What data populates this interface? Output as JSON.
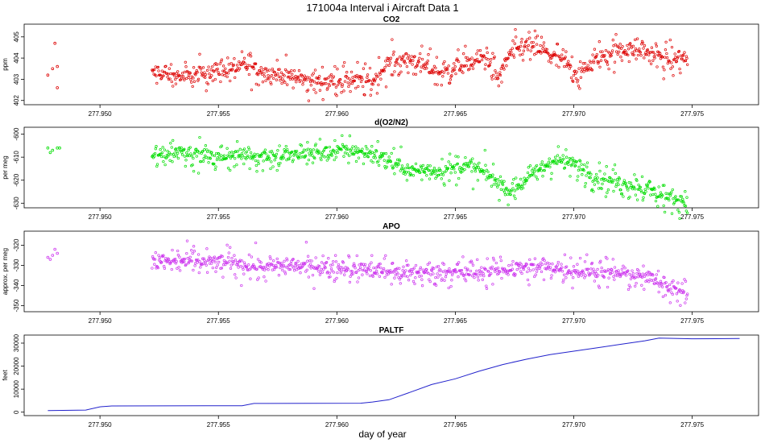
{
  "figure": {
    "title": "171004a   Interval i Aircraft Data 1",
    "xlabel": "day of year"
  },
  "chart_data": [
    {
      "type": "scatter",
      "title": "CO2",
      "ylabel": "ppm",
      "color": "#dd0000",
      "xlim": [
        277.9468,
        277.9778
      ],
      "ylim": [
        401.8,
        405.6
      ],
      "xticks": [
        277.95,
        277.955,
        277.96,
        277.965,
        277.97,
        277.975
      ],
      "xtick_labels": [
        "277.950",
        "277.955",
        "277.960",
        "277.965",
        "277.970",
        "277.975"
      ],
      "yticks": [
        402,
        403,
        404,
        405
      ],
      "ytick_labels": [
        "402",
        "403",
        "404",
        "405"
      ],
      "segments": [
        {
          "x_start": 277.9478,
          "x_end": 277.9483,
          "points": [
            [
              277.9478,
              403.2
            ],
            [
              277.948,
              403.5
            ],
            [
              277.9482,
              403.6
            ],
            [
              277.9481,
              404.7
            ],
            [
              277.9482,
              402.6
            ]
          ]
        },
        {
          "x_start": 277.9522,
          "x_end": 277.9748,
          "anchors": [
            [
              277.9522,
              403.3
            ],
            [
              277.9535,
              403.1
            ],
            [
              277.955,
              403.4
            ],
            [
              277.9562,
              403.6
            ],
            [
              277.9575,
              403.2
            ],
            [
              277.959,
              402.9
            ],
            [
              277.9605,
              403.0
            ],
            [
              277.9615,
              402.9
            ],
            [
              277.9622,
              403.8
            ],
            [
              277.9632,
              403.9
            ],
            [
              277.9643,
              403.3
            ],
            [
              277.9655,
              403.7
            ],
            [
              277.9663,
              404.1
            ],
            [
              277.9668,
              403.0
            ],
            [
              277.9673,
              404.2
            ],
            [
              277.968,
              404.6
            ],
            [
              277.9688,
              404.3
            ],
            [
              277.9695,
              403.9
            ],
            [
              277.9702,
              403.2
            ],
            [
              277.971,
              404.0
            ],
            [
              277.972,
              404.4
            ],
            [
              277.973,
              404.3
            ],
            [
              277.974,
              403.9
            ],
            [
              277.9748,
              404.0
            ]
          ],
          "spread": 0.55
        }
      ]
    },
    {
      "type": "scatter",
      "title": "d(O2/N2)",
      "ylabel": "per meg",
      "color": "#00dd00",
      "xlim": [
        277.9468,
        277.9778
      ],
      "ylim": [
        -632,
        -597
      ],
      "xticks": [
        277.95,
        277.955,
        277.96,
        277.965,
        277.97,
        277.975
      ],
      "xtick_labels": [
        "277.950",
        "277.955",
        "277.960",
        "277.965",
        "277.970",
        "277.975"
      ],
      "yticks": [
        -630,
        -620,
        -610,
        -600
      ],
      "ytick_labels": [
        "-630",
        "-620",
        "-610",
        "-600"
      ],
      "segments": [
        {
          "x_start": 277.9478,
          "x_end": 277.9483,
          "points": [
            [
              277.9478,
              -606
            ],
            [
              277.948,
              -607
            ],
            [
              277.9482,
              -606
            ],
            [
              277.9483,
              -606
            ],
            [
              277.9479,
              -608
            ]
          ]
        },
        {
          "x_start": 277.9522,
          "x_end": 277.9748,
          "anchors": [
            [
              277.9522,
              -610
            ],
            [
              277.9535,
              -607
            ],
            [
              277.9548,
              -610
            ],
            [
              277.956,
              -609
            ],
            [
              277.9575,
              -610
            ],
            [
              277.959,
              -608
            ],
            [
              277.9605,
              -607
            ],
            [
              277.9618,
              -609
            ],
            [
              277.963,
              -616
            ],
            [
              277.9642,
              -616
            ],
            [
              277.9655,
              -614
            ],
            [
              277.9663,
              -617
            ],
            [
              277.9673,
              -625
            ],
            [
              277.9682,
              -618
            ],
            [
              277.9692,
              -611
            ],
            [
              277.97,
              -613
            ],
            [
              277.971,
              -619
            ],
            [
              277.972,
              -621
            ],
            [
              277.9732,
              -624
            ],
            [
              277.974,
              -628
            ],
            [
              277.9748,
              -629
            ]
          ],
          "spread": 4.5
        }
      ]
    },
    {
      "type": "scatter",
      "title": "APO",
      "ylabel": "approx. per meg",
      "color": "#cc33ee",
      "xlim": [
        277.9468,
        277.9778
      ],
      "ylim": [
        -353,
        -313
      ],
      "xticks": [
        277.95,
        277.955,
        277.96,
        277.965,
        277.97,
        277.975
      ],
      "xtick_labels": [
        "277.950",
        "277.955",
        "277.960",
        "277.965",
        "277.970",
        "277.975"
      ],
      "yticks": [
        -350,
        -340,
        -330,
        -320
      ],
      "ytick_labels": [
        "-350",
        "-340",
        "-330",
        "-320"
      ],
      "segments": [
        {
          "x_start": 277.9478,
          "x_end": 277.9483,
          "points": [
            [
              277.9478,
              -326
            ],
            [
              277.948,
              -325
            ],
            [
              277.9482,
              -324
            ],
            [
              277.9481,
              -322
            ],
            [
              277.9479,
              -327
            ]
          ]
        },
        {
          "x_start": 277.9522,
          "x_end": 277.9748,
          "anchors": [
            [
              277.9522,
              -328
            ],
            [
              277.9538,
              -328
            ],
            [
              277.9555,
              -329
            ],
            [
              277.957,
              -331
            ],
            [
              277.9585,
              -330
            ],
            [
              277.96,
              -331
            ],
            [
              277.9615,
              -332
            ],
            [
              277.963,
              -334
            ],
            [
              277.9645,
              -333
            ],
            [
              277.966,
              -334
            ],
            [
              277.9675,
              -331
            ],
            [
              277.969,
              -331
            ],
            [
              277.9705,
              -333
            ],
            [
              277.972,
              -334
            ],
            [
              277.9735,
              -337
            ],
            [
              277.9742,
              -342
            ],
            [
              277.9748,
              -343
            ]
          ],
          "spread": 5.5
        }
      ]
    },
    {
      "type": "line",
      "title": "PALTF",
      "ylabel": "feet",
      "color": "#2222cc",
      "xlim": [
        277.9468,
        277.9778
      ],
      "ylim": [
        -1500,
        33500
      ],
      "xticks": [
        277.95,
        277.955,
        277.96,
        277.965,
        277.97,
        277.975
      ],
      "xtick_labels": [
        "277.950",
        "277.955",
        "277.960",
        "277.965",
        "277.970",
        "277.975"
      ],
      "yticks": [
        0,
        10000,
        20000,
        30000
      ],
      "ytick_labels": [
        "0",
        "10000",
        "20000",
        "30000"
      ],
      "x": [
        277.9478,
        277.9494,
        277.95,
        277.9505,
        277.956,
        277.9565,
        277.957,
        277.961,
        277.9615,
        277.9622,
        277.963,
        277.964,
        277.965,
        277.966,
        277.967,
        277.968,
        277.969,
        277.97,
        277.971,
        277.972,
        277.973,
        277.9736,
        277.975,
        277.977
      ],
      "y": [
        700,
        900,
        2300,
        2700,
        2800,
        3800,
        3800,
        3900,
        4400,
        5400,
        8300,
        12000,
        14500,
        17800,
        20700,
        23000,
        25000,
        26500,
        28000,
        29500,
        31000,
        32200,
        31900,
        32000
      ]
    }
  ]
}
